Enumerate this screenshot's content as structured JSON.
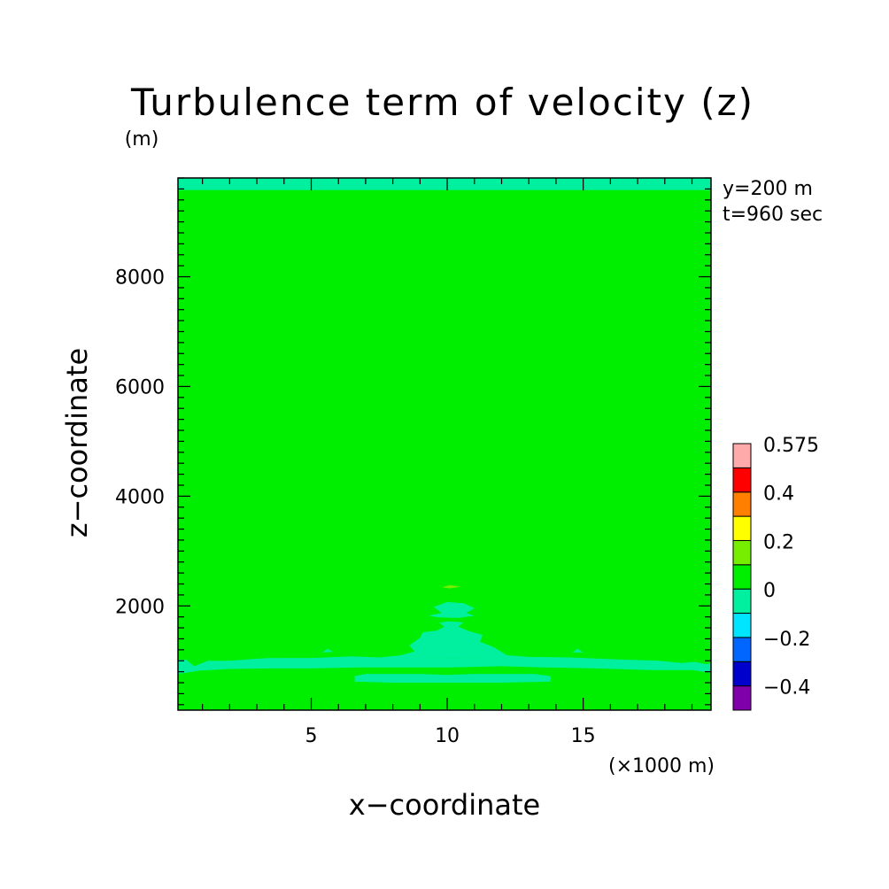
{
  "chart_data": {
    "type": "heatmap",
    "title": "Turbulence term of velocity (z)",
    "ylabel_unit": "(m)",
    "xlabel": "x−coordinate",
    "ylabel": "z−coordinate",
    "x_unit": "(×1000 m)",
    "annotations": [
      "y=200 m",
      "t=960 sec"
    ],
    "xlim": [
      0.1,
      19.7
    ],
    "ylim": [
      100,
      9800
    ],
    "x_ticks": [
      5,
      10,
      15
    ],
    "x_tick_labels": [
      "5",
      "10",
      "15"
    ],
    "y_ticks": [
      2000,
      4000,
      6000,
      8000
    ],
    "y_tick_labels": [
      "2000",
      "4000",
      "6000",
      "8000"
    ],
    "grid": false,
    "background_level": {
      "range": [
        0,
        0.1
      ],
      "color": "#00ee00"
    },
    "colorbar": {
      "label_values": [
        "0.575",
        "0.4",
        "0.2",
        "0",
        "−0.2",
        "−0.4"
      ],
      "levels": [
        {
          "range": [
            -0.5,
            -0.4
          ],
          "color": "#7f00aa"
        },
        {
          "range": [
            -0.4,
            -0.3
          ],
          "color": "#0000cc"
        },
        {
          "range": [
            -0.3,
            -0.2
          ],
          "color": "#0066ff"
        },
        {
          "range": [
            -0.2,
            -0.1
          ],
          "color": "#00e5ff"
        },
        {
          "range": [
            -0.1,
            0.0
          ],
          "color": "#00f0a0"
        },
        {
          "range": [
            0.0,
            0.1
          ],
          "color": "#00ee00"
        },
        {
          "range": [
            0.1,
            0.2
          ],
          "color": "#77ee00"
        },
        {
          "range": [
            0.2,
            0.3
          ],
          "color": "#ffff00"
        },
        {
          "range": [
            0.3,
            0.4
          ],
          "color": "#ff7f00"
        },
        {
          "range": [
            0.4,
            0.5
          ],
          "color": "#ff0000"
        },
        {
          "range": [
            0.5,
            0.575
          ],
          "color": "#ffaaaa"
        }
      ]
    },
    "regions": [
      {
        "level": "-0.1 to 0",
        "color": "#00f0a0",
        "polygon": [
          [
            0.1,
            9580
          ],
          [
            19.7,
            9580
          ],
          [
            19.7,
            9800
          ],
          [
            0.1,
            9800
          ]
        ]
      },
      {
        "level": "-0.1 to 0",
        "color": "#00f0a0",
        "polygon": [
          [
            0.1,
            1020
          ],
          [
            0.4,
            1020
          ],
          [
            0.7,
            900
          ],
          [
            1.2,
            1000
          ],
          [
            2.0,
            1000
          ],
          [
            2.8,
            1030
          ],
          [
            3.5,
            1050
          ],
          [
            5.0,
            1050
          ],
          [
            6.5,
            1080
          ],
          [
            7.5,
            1060
          ],
          [
            8.3,
            1100
          ],
          [
            9.2,
            1100
          ],
          [
            9.8,
            1050
          ],
          [
            10.6,
            1050
          ],
          [
            11.2,
            1100
          ],
          [
            12.2,
            1100
          ],
          [
            13.0,
            1070
          ],
          [
            14.5,
            1060
          ],
          [
            16.5,
            1020
          ],
          [
            17.8,
            1000
          ],
          [
            18.6,
            960
          ],
          [
            19.1,
            980
          ],
          [
            19.5,
            940
          ],
          [
            19.7,
            950
          ],
          [
            19.7,
            780
          ],
          [
            19.0,
            830
          ],
          [
            17.5,
            830
          ],
          [
            15.5,
            860
          ],
          [
            13.5,
            880
          ],
          [
            12.0,
            900
          ],
          [
            10.2,
            880
          ],
          [
            8.2,
            880
          ],
          [
            6.8,
            880
          ],
          [
            5.0,
            860
          ],
          [
            3.5,
            860
          ],
          [
            2.0,
            850
          ],
          [
            0.9,
            820
          ],
          [
            0.1,
            760
          ]
        ]
      },
      {
        "level": "-0.1 to 0",
        "color": "#00f0a0",
        "polygon": [
          [
            8.3,
            1100
          ],
          [
            8.8,
            1170
          ],
          [
            8.6,
            1280
          ],
          [
            9.0,
            1420
          ],
          [
            9.1,
            1520
          ],
          [
            9.6,
            1550
          ],
          [
            9.9,
            1620
          ],
          [
            9.7,
            1690
          ],
          [
            10.0,
            1720
          ],
          [
            10.6,
            1700
          ],
          [
            10.4,
            1620
          ],
          [
            10.8,
            1540
          ],
          [
            11.3,
            1470
          ],
          [
            11.2,
            1350
          ],
          [
            11.7,
            1250
          ],
          [
            12.2,
            1100
          ],
          [
            11.2,
            1100
          ],
          [
            10.6,
            1050
          ],
          [
            9.8,
            1050
          ],
          [
            9.2,
            1100
          ]
        ]
      },
      {
        "level": "-0.1 to 0",
        "color": "#00f0a0",
        "polygon": [
          [
            9.3,
            1820
          ],
          [
            9.8,
            1870
          ],
          [
            9.5,
            1980
          ],
          [
            10.0,
            2070
          ],
          [
            10.6,
            2050
          ],
          [
            11.0,
            1960
          ],
          [
            10.7,
            1870
          ],
          [
            11.0,
            1820
          ],
          [
            10.4,
            1780
          ],
          [
            9.7,
            1790
          ]
        ]
      },
      {
        "level": "-0.1 to 0",
        "color": "#00f0a0",
        "polygon": [
          [
            6.6,
            620
          ],
          [
            6.6,
            720
          ],
          [
            7.0,
            760
          ],
          [
            9.0,
            760
          ],
          [
            10.0,
            740
          ],
          [
            11.0,
            760
          ],
          [
            13.2,
            760
          ],
          [
            13.8,
            720
          ],
          [
            13.8,
            620
          ],
          [
            12.0,
            600
          ],
          [
            10.0,
            600
          ],
          [
            8.0,
            600
          ]
        ]
      },
      {
        "level": "-0.1 to 0",
        "color": "#00f0a0",
        "polygon": [
          [
            5.4,
            1150
          ],
          [
            5.6,
            1220
          ],
          [
            5.8,
            1160
          ]
        ]
      },
      {
        "level": "-0.1 to 0",
        "color": "#00f0a0",
        "polygon": [
          [
            14.6,
            1150
          ],
          [
            14.8,
            1220
          ],
          [
            15.0,
            1150
          ]
        ]
      },
      {
        "level": "0.1 to 0.2",
        "color": "#77ee00",
        "polygon": [
          [
            9.8,
            2340
          ],
          [
            10.1,
            2380
          ],
          [
            10.5,
            2350
          ],
          [
            10.1,
            2320
          ]
        ]
      }
    ]
  }
}
